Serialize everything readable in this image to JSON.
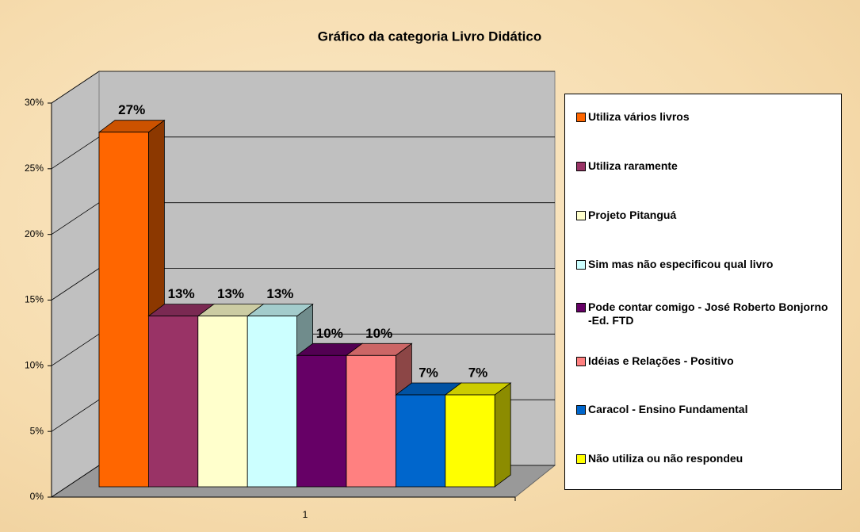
{
  "chart_data": {
    "type": "bar3d",
    "title": "Gráfico da categoria Livro Didático",
    "categories": [
      "1"
    ],
    "series": [
      {
        "name": "Utiliza vários livros",
        "color": "#ff6600",
        "values": [
          27
        ],
        "value_labels": [
          "27%"
        ]
      },
      {
        "name": "Utiliza raramente",
        "color": "#993366",
        "values": [
          13
        ],
        "value_labels": [
          "13%"
        ]
      },
      {
        "name": "Projeto Pitanguá",
        "color": "#ffffcc",
        "values": [
          13
        ],
        "value_labels": [
          "13%"
        ]
      },
      {
        "name": "Sim mas não especificou qual livro",
        "color": "#ccffff",
        "values": [
          13
        ],
        "value_labels": [
          "13%"
        ]
      },
      {
        "name": "Pode contar comigo -  José Roberto Bonjorno -Ed. FTD",
        "color": "#660066",
        "values": [
          10
        ],
        "value_labels": [
          "10%"
        ]
      },
      {
        "name": "Idéias e Relações - Positivo",
        "color": "#ff8080",
        "values": [
          10
        ],
        "value_labels": [
          "10%"
        ]
      },
      {
        "name": "Caracol - Ensino Fundamental",
        "color": "#0066cc",
        "values": [
          7
        ],
        "value_labels": [
          "7%"
        ]
      },
      {
        "name": "Não utiliza ou não respondeu",
        "color": "#ffff00",
        "values": [
          7
        ],
        "value_labels": [
          "7%"
        ]
      }
    ],
    "ylim": [
      0,
      30
    ],
    "yticks": [
      {
        "value": 0,
        "label": "0%"
      },
      {
        "value": 5,
        "label": "5%"
      },
      {
        "value": 10,
        "label": "10%"
      },
      {
        "value": 15,
        "label": "15%"
      },
      {
        "value": 20,
        "label": "20%"
      },
      {
        "value": 25,
        "label": "25%"
      },
      {
        "value": 30,
        "label": "30%"
      }
    ],
    "grid": true,
    "legend": "right"
  }
}
